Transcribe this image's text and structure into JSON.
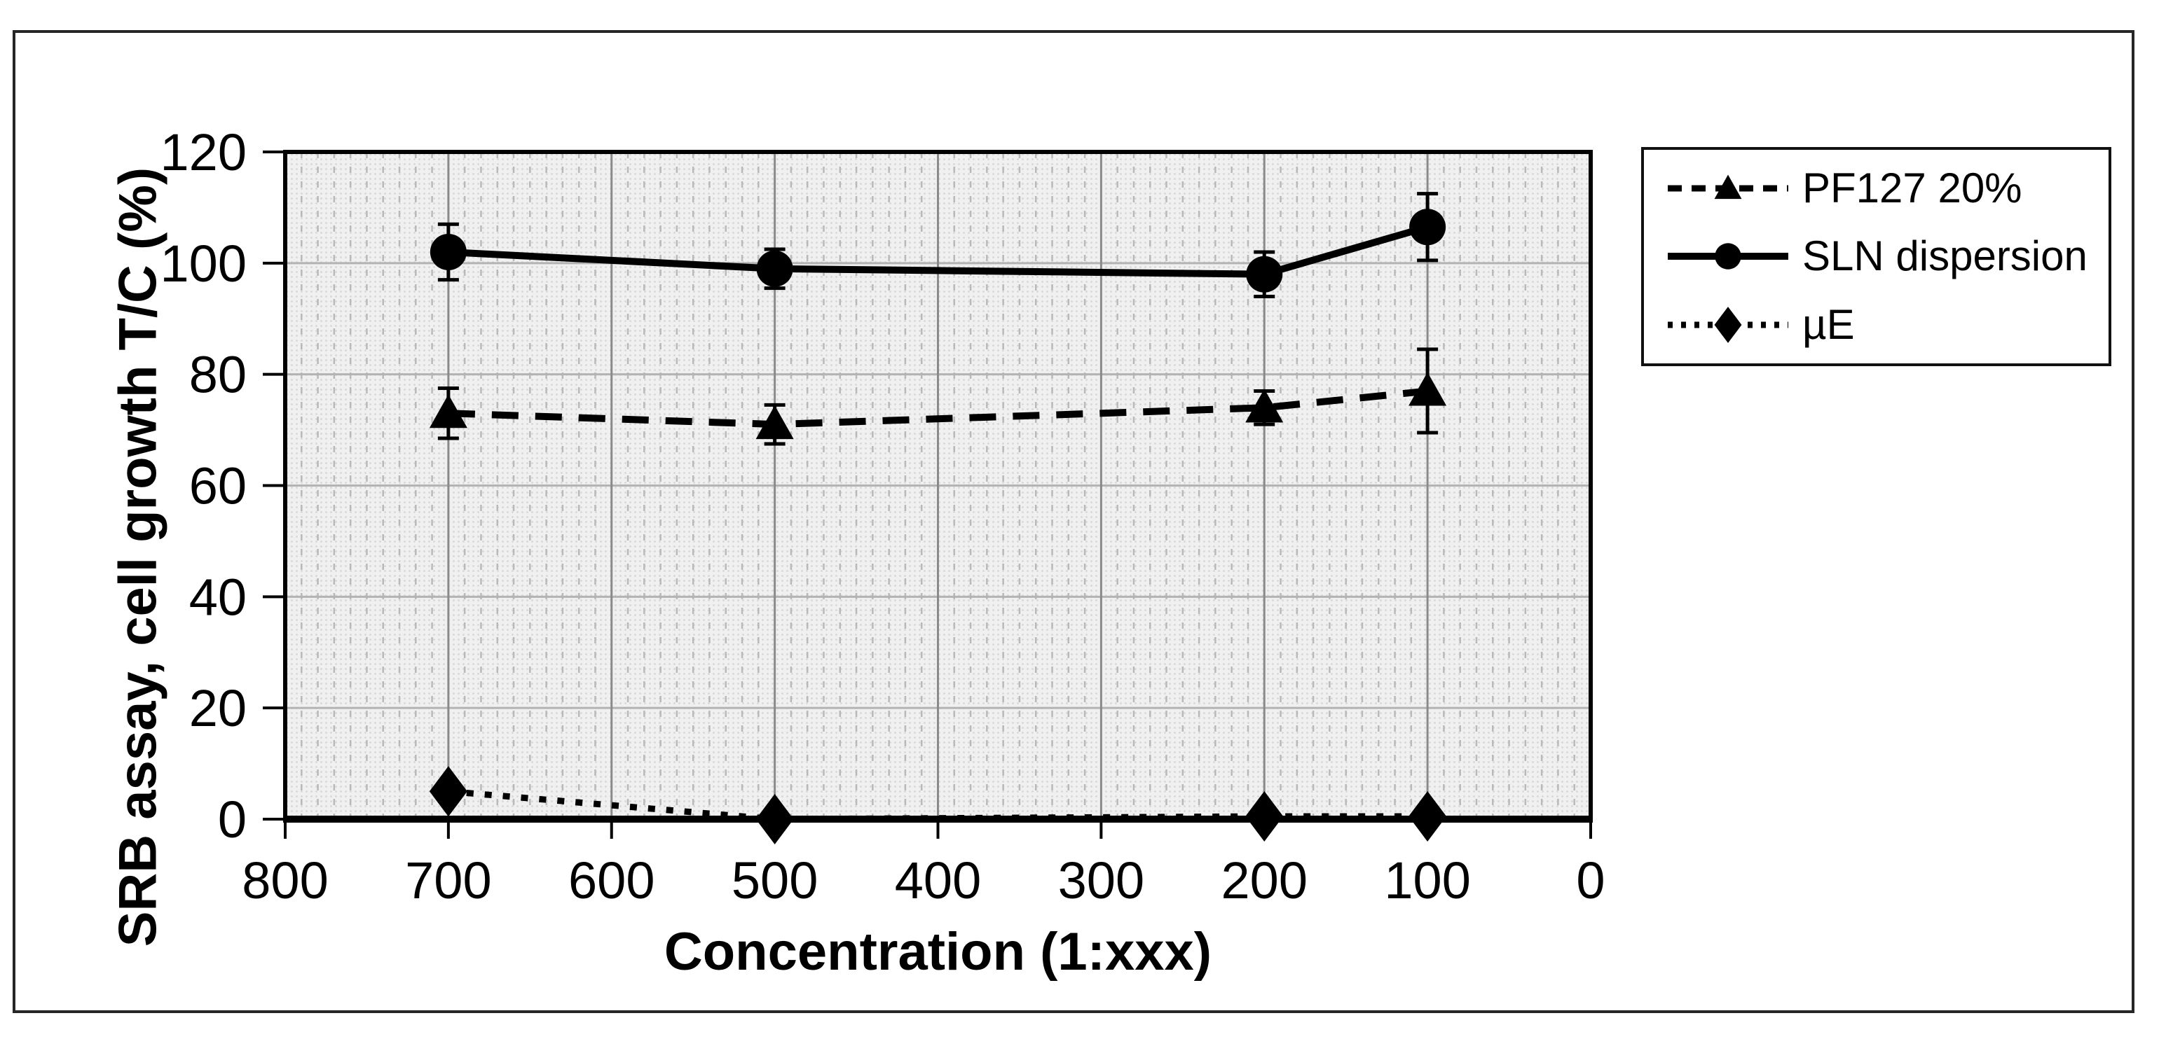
{
  "figure": {
    "background": "#ffffff",
    "border_color": "#262626"
  },
  "chart_data": {
    "type": "line",
    "title": "",
    "xlabel": "Concentration (1:xxx)",
    "ylabel": "SRB assay, cell growth T/C (%)",
    "xlim": [
      800,
      0
    ],
    "ylim": [
      0,
      120
    ],
    "x_axis_reversed": true,
    "grid": {
      "minor_x_step": 10,
      "major_x_step": 100,
      "y_step": 20,
      "grid_on": true
    },
    "x_ticks": [
      800,
      700,
      600,
      500,
      400,
      300,
      200,
      100,
      0
    ],
    "y_ticks": [
      0,
      20,
      40,
      60,
      80,
      100,
      120
    ],
    "x": [
      700,
      500,
      200,
      100
    ],
    "series": [
      {
        "name": "PF127 20%",
        "marker": "triangle",
        "line": "dashed",
        "values": [
          73,
          71,
          74,
          77
        ],
        "errors": [
          4.5,
          3.5,
          3,
          7.5
        ]
      },
      {
        "name": "SLN dispersion",
        "marker": "circle",
        "line": "solid",
        "values": [
          102,
          99,
          98,
          106.5
        ],
        "errors": [
          5,
          3.5,
          4,
          6
        ]
      },
      {
        "name": "µE",
        "marker": "diamond",
        "line": "dotted",
        "values": [
          5,
          0,
          0.5,
          0.5
        ],
        "errors": [
          0,
          0,
          0,
          0
        ]
      }
    ],
    "legend_position": "outside-right",
    "colors": {
      "series": "#000000",
      "plot_bg": "#f0f0f0",
      "plot_bg_dot": "#d7d7d7",
      "grid_minor": "#b9b9b9",
      "grid_major_v": "#8a8a8a",
      "grid_h": "#b3b3b3",
      "frame": "#000000",
      "text": "#000000"
    }
  },
  "legend": {
    "items": [
      "PF127 20%",
      "SLN dispersion",
      "µE"
    ]
  }
}
